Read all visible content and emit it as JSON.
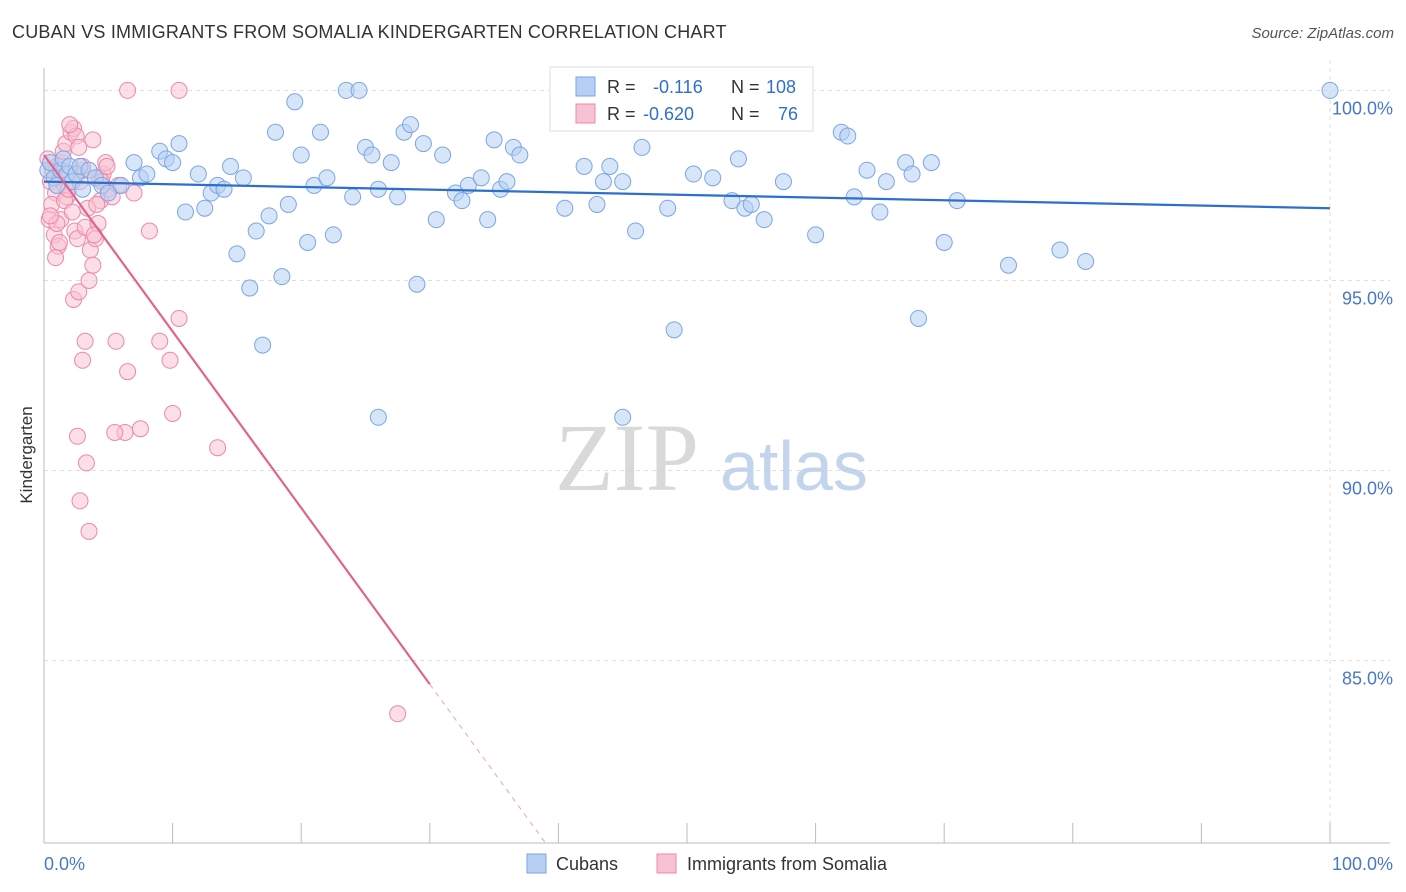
{
  "title": "CUBAN VS IMMIGRANTS FROM SOMALIA KINDERGARTEN CORRELATION CHART",
  "source": "Source: ZipAtlas.com",
  "watermark": {
    "zip": "ZIP",
    "atlas": "atlas"
  },
  "colors": {
    "blue": "#7aa6e6",
    "blue_fill": "#b7cff3",
    "blue_line": "#2f6fcc",
    "pink": "#ee88a8",
    "pink_fill": "#f7c2d3",
    "pink_line": "#e0648e",
    "value_text": "#2f6fcc",
    "grid": "#dddddd"
  },
  "stats_legend": [
    {
      "r_label": "R =",
      "r_value": "-0.116",
      "n_label": "N =",
      "n_value": "108"
    },
    {
      "r_label": "R =",
      "r_value": "-0.620",
      "n_label": "N =",
      "n_value": "76"
    }
  ],
  "chart_data": {
    "type": "scatter",
    "ylabel": "Kindergarten",
    "xlim": [
      0,
      100
    ],
    "ylim": [
      80.2,
      100.8
    ],
    "y_ticks": [
      {
        "value": 100,
        "label": "100.0%"
      },
      {
        "value": 95,
        "label": "95.0%"
      },
      {
        "value": 90,
        "label": "90.0%"
      },
      {
        "value": 85,
        "label": "85.0%"
      }
    ],
    "x_end_labels": {
      "left": "0.0%",
      "right": "100.0%"
    },
    "grid": true,
    "legend_position": "bottom-center",
    "series": [
      {
        "name": "Cubans",
        "trend": {
          "x0": 0,
          "y0": 97.6,
          "x1": 100,
          "y1": 96.9,
          "dashed_from": null
        },
        "points": [
          [
            0.3,
            97.9
          ],
          [
            0.5,
            98.1
          ],
          [
            0.8,
            97.7
          ],
          [
            1.0,
            97.5
          ],
          [
            1.3,
            97.9
          ],
          [
            1.5,
            98.2
          ],
          [
            1.8,
            97.8
          ],
          [
            2.0,
            98.0
          ],
          [
            2.2,
            97.6
          ],
          [
            2.5,
            97.8
          ],
          [
            2.8,
            98.0
          ],
          [
            3.0,
            97.4
          ],
          [
            3.5,
            97.9
          ],
          [
            4.0,
            97.7
          ],
          [
            4.5,
            97.5
          ],
          [
            5.0,
            97.3
          ],
          [
            6.0,
            97.5
          ],
          [
            7.0,
            98.1
          ],
          [
            7.5,
            97.7
          ],
          [
            8.0,
            97.8
          ],
          [
            9.0,
            98.4
          ],
          [
            9.5,
            98.2
          ],
          [
            10.0,
            98.1
          ],
          [
            10.5,
            98.6
          ],
          [
            11.0,
            96.8
          ],
          [
            12.0,
            97.8
          ],
          [
            12.5,
            96.9
          ],
          [
            13.0,
            97.3
          ],
          [
            13.5,
            97.5
          ],
          [
            14.0,
            97.4
          ],
          [
            14.5,
            98.0
          ],
          [
            15.0,
            95.7
          ],
          [
            15.5,
            97.7
          ],
          [
            16.0,
            94.8
          ],
          [
            16.5,
            96.3
          ],
          [
            17.0,
            93.3
          ],
          [
            17.5,
            96.7
          ],
          [
            18.0,
            98.9
          ],
          [
            18.5,
            95.1
          ],
          [
            19.0,
            97.0
          ],
          [
            19.5,
            99.7
          ],
          [
            20.0,
            98.3
          ],
          [
            20.5,
            96.0
          ],
          [
            21.0,
            97.5
          ],
          [
            21.5,
            98.9
          ],
          [
            22.0,
            97.7
          ],
          [
            22.5,
            96.2
          ],
          [
            23.5,
            100.0
          ],
          [
            24.0,
            97.2
          ],
          [
            24.5,
            100.0
          ],
          [
            25.0,
            98.5
          ],
          [
            25.5,
            98.3
          ],
          [
            26.0,
            97.4
          ],
          [
            27.0,
            98.1
          ],
          [
            27.5,
            97.2
          ],
          [
            28.0,
            98.9
          ],
          [
            28.5,
            99.1
          ],
          [
            29.0,
            94.9
          ],
          [
            29.5,
            98.6
          ],
          [
            30.5,
            96.6
          ],
          [
            31.0,
            98.3
          ],
          [
            32.0,
            97.3
          ],
          [
            32.5,
            97.1
          ],
          [
            33.0,
            97.5
          ],
          [
            34.0,
            97.7
          ],
          [
            34.5,
            96.6
          ],
          [
            35.0,
            98.7
          ],
          [
            35.5,
            97.4
          ],
          [
            36.0,
            97.6
          ],
          [
            36.5,
            98.5
          ],
          [
            37.0,
            98.3
          ],
          [
            40.5,
            96.9
          ],
          [
            42.0,
            98.0
          ],
          [
            43.0,
            97.0
          ],
          [
            43.5,
            97.6
          ],
          [
            44.0,
            98.0
          ],
          [
            45.0,
            97.6
          ],
          [
            46.0,
            96.3
          ],
          [
            46.5,
            98.5
          ],
          [
            48.5,
            96.9
          ],
          [
            49.0,
            93.7
          ],
          [
            50.5,
            97.8
          ],
          [
            52.0,
            97.7
          ],
          [
            53.5,
            97.1
          ],
          [
            54.5,
            96.9
          ],
          [
            55.0,
            97.0
          ],
          [
            56.0,
            96.6
          ],
          [
            57.5,
            97.6
          ],
          [
            60.0,
            96.2
          ],
          [
            62.0,
            98.9
          ],
          [
            62.5,
            98.8
          ],
          [
            63.0,
            97.2
          ],
          [
            64.0,
            97.9
          ],
          [
            65.0,
            96.8
          ],
          [
            65.5,
            97.6
          ],
          [
            67.0,
            98.1
          ],
          [
            67.5,
            97.8
          ],
          [
            68.0,
            94.0
          ],
          [
            69.0,
            98.1
          ],
          [
            70.0,
            96.0
          ],
          [
            71.0,
            97.1
          ],
          [
            75.0,
            95.4
          ],
          [
            79.0,
            95.8
          ],
          [
            81.0,
            95.5
          ],
          [
            100.0,
            100.0
          ],
          [
            26.0,
            91.4
          ],
          [
            45.0,
            91.4
          ],
          [
            54.0,
            98.2
          ]
        ]
      },
      {
        "name": "Immigrants from Somalia",
        "trend": {
          "x0": 0,
          "y0": 98.3,
          "x1": 39,
          "y1": 80.2,
          "dashed_from": 30
        },
        "points": [
          [
            0.3,
            98.2
          ],
          [
            0.5,
            97.6
          ],
          [
            0.7,
            97.9
          ],
          [
            0.9,
            97.3
          ],
          [
            1.0,
            98.0
          ],
          [
            1.2,
            97.7
          ],
          [
            1.4,
            98.1
          ],
          [
            1.6,
            97.5
          ],
          [
            1.8,
            97.2
          ],
          [
            2.0,
            97.8
          ],
          [
            0.4,
            96.6
          ],
          [
            0.8,
            96.2
          ],
          [
            1.1,
            95.9
          ],
          [
            1.3,
            96.6
          ],
          [
            1.5,
            98.4
          ],
          [
            1.7,
            98.6
          ],
          [
            2.1,
            98.9
          ],
          [
            2.3,
            99.0
          ],
          [
            2.5,
            98.8
          ],
          [
            2.7,
            98.5
          ],
          [
            0.6,
            97.0
          ],
          [
            0.9,
            95.6
          ],
          [
            1.2,
            96.0
          ],
          [
            1.6,
            97.1
          ],
          [
            1.9,
            97.4
          ],
          [
            2.2,
            96.8
          ],
          [
            2.4,
            96.3
          ],
          [
            2.6,
            96.1
          ],
          [
            2.8,
            97.6
          ],
          [
            3.0,
            97.9
          ],
          [
            3.2,
            96.4
          ],
          [
            3.4,
            96.9
          ],
          [
            3.6,
            95.8
          ],
          [
            3.8,
            95.4
          ],
          [
            4.0,
            96.1
          ],
          [
            4.2,
            96.5
          ],
          [
            4.4,
            97.1
          ],
          [
            4.6,
            97.8
          ],
          [
            4.8,
            98.1
          ],
          [
            5.0,
            97.4
          ],
          [
            2.3,
            94.5
          ],
          [
            2.7,
            94.7
          ],
          [
            3.5,
            95.0
          ],
          [
            3.9,
            96.2
          ],
          [
            4.1,
            97.0
          ],
          [
            4.3,
            97.7
          ],
          [
            4.9,
            98.0
          ],
          [
            5.3,
            97.2
          ],
          [
            5.8,
            97.5
          ],
          [
            7.0,
            97.3
          ],
          [
            3.0,
            92.9
          ],
          [
            3.2,
            93.4
          ],
          [
            5.6,
            93.4
          ],
          [
            6.5,
            92.6
          ],
          [
            6.3,
            91.0
          ],
          [
            5.5,
            91.0
          ],
          [
            2.6,
            90.9
          ],
          [
            3.3,
            90.2
          ],
          [
            2.8,
            89.2
          ],
          [
            3.5,
            88.4
          ],
          [
            7.5,
            91.1
          ],
          [
            10.0,
            91.5
          ],
          [
            13.5,
            90.6
          ],
          [
            8.2,
            96.3
          ],
          [
            10.5,
            94.0
          ],
          [
            9.8,
            92.9
          ],
          [
            9.0,
            93.4
          ],
          [
            6.5,
            100.0
          ],
          [
            10.5,
            100.0
          ],
          [
            27.5,
            83.6
          ],
          [
            2.0,
            99.1
          ],
          [
            3.8,
            98.7
          ],
          [
            4.5,
            97.6
          ],
          [
            3.0,
            98.0
          ],
          [
            1.0,
            96.5
          ],
          [
            0.5,
            96.7
          ]
        ]
      }
    ]
  }
}
